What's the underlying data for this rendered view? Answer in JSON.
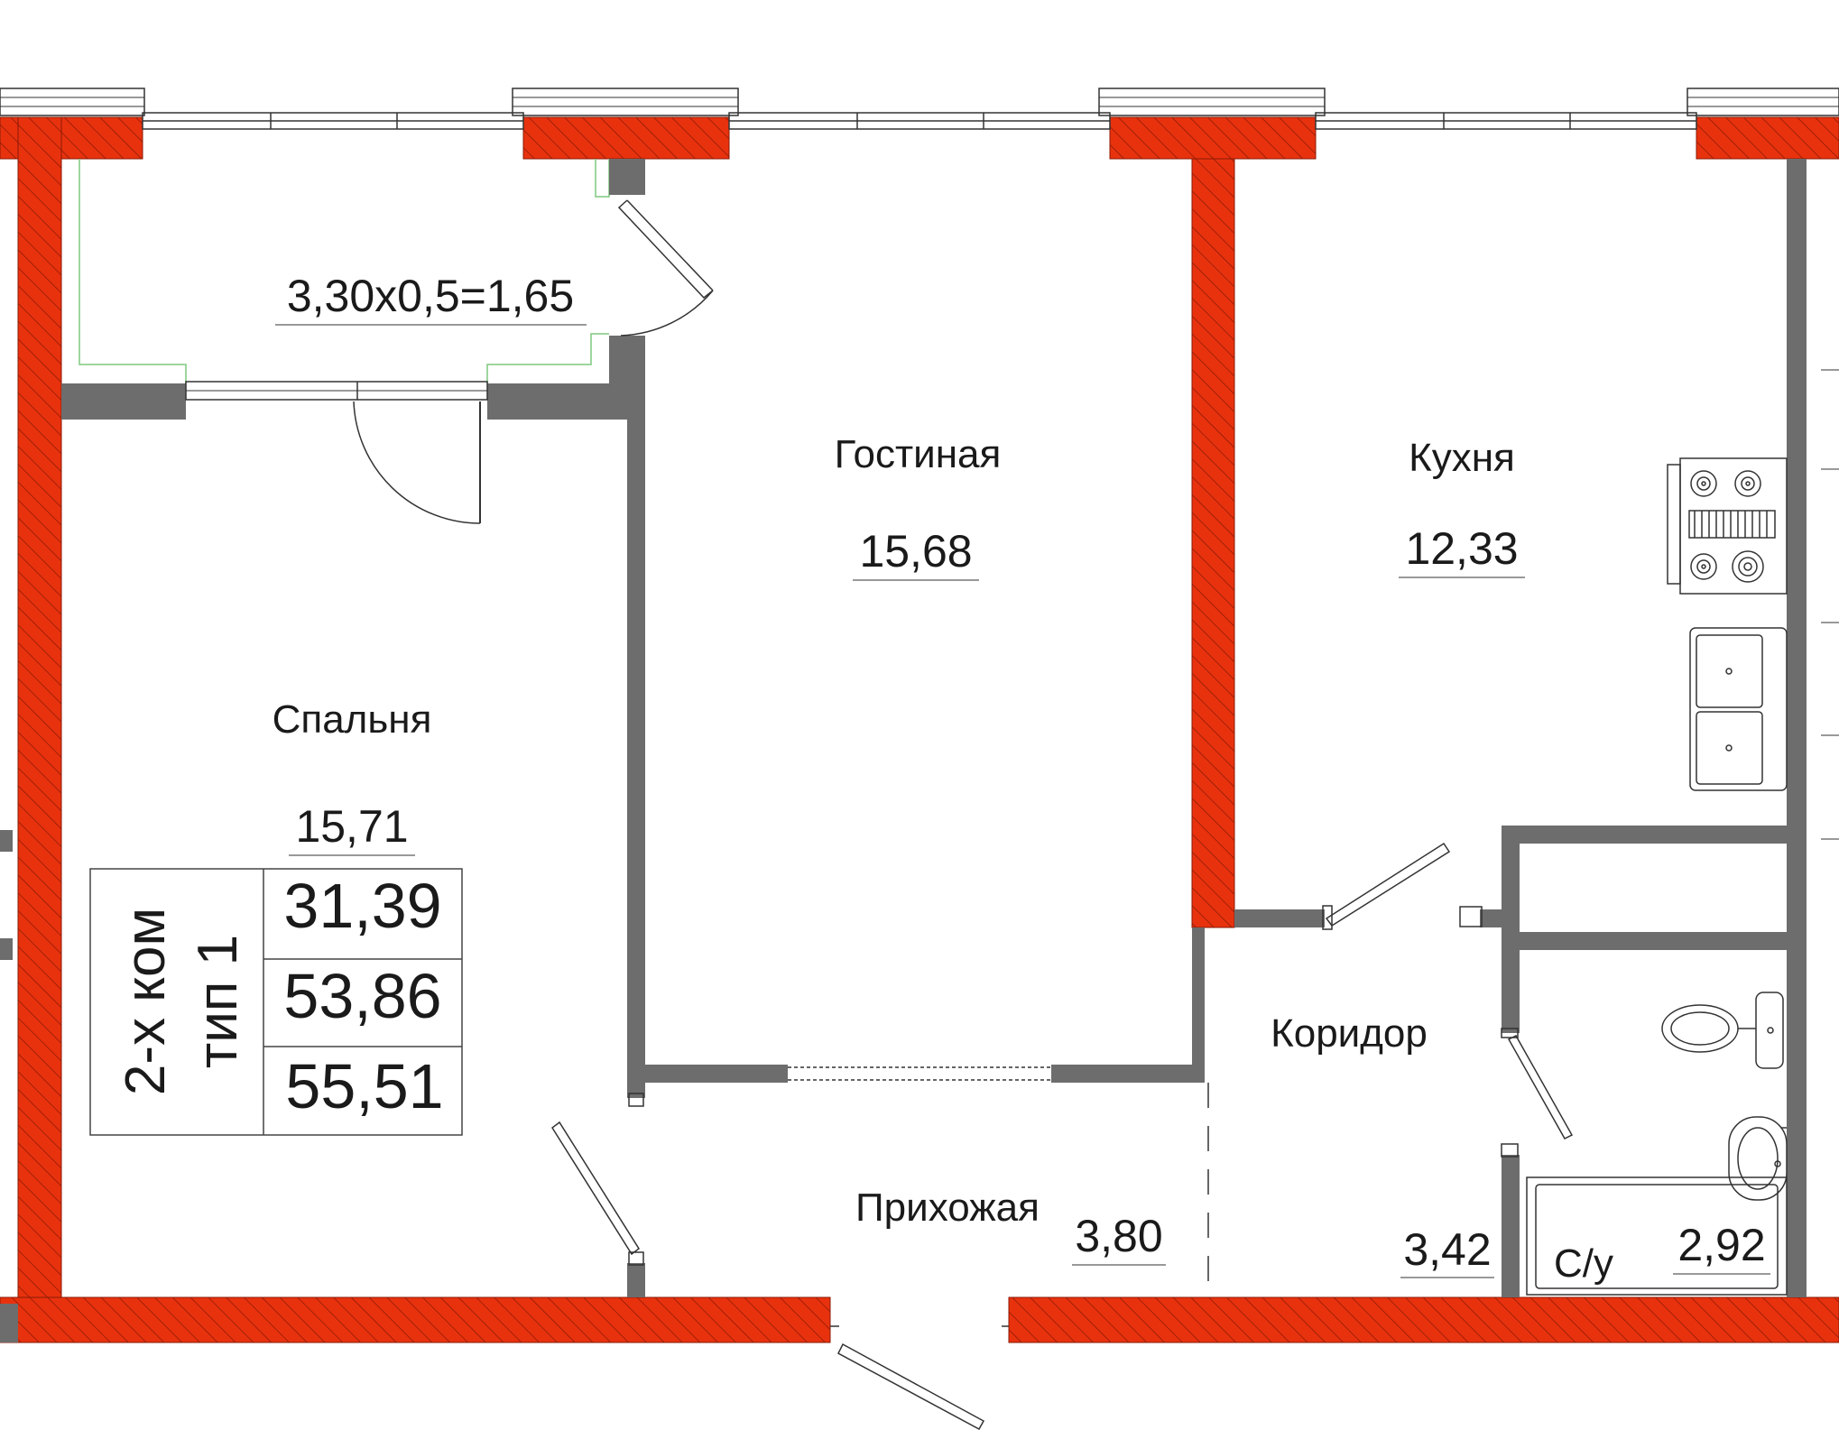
{
  "rooms": {
    "balcony": {
      "label": "3,30х0,5=1,65"
    },
    "living": {
      "name": "Гостиная",
      "area": "15,68"
    },
    "kitchen": {
      "name": "Кухня",
      "area": "12,33"
    },
    "bedroom": {
      "name": "Спальня",
      "area": "15,71"
    },
    "corridor": {
      "name": "Коридор",
      "area": "3,42"
    },
    "hall": {
      "name": "Прихожая",
      "area": "3,80"
    },
    "bathroom": {
      "name": "С/у",
      "area": "2,92"
    }
  },
  "summary": {
    "type_line1": "2-х ком",
    "type_line2": "тип 1",
    "living_area": "31,39",
    "total_area": "53,86",
    "total_with_balcony": "55,51"
  },
  "colors": {
    "exterior_wall": "#e8320e",
    "interior_wall": "#6d6d6d",
    "line": "#333333",
    "balcony_outline": "#7ec87e"
  }
}
